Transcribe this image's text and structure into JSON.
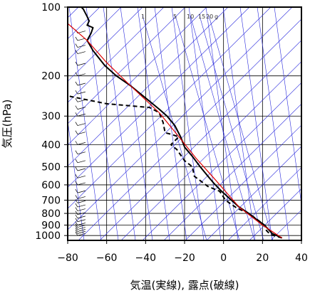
{
  "chart_data": {
    "type": "line",
    "title": "",
    "xlabel": "気温(実線), 露点(破線)",
    "ylabel": "気圧(hPa)",
    "xlim": [
      -80,
      40
    ],
    "ylim": [
      1050,
      100
    ],
    "y_scale": "log",
    "x_ticks": [
      -80,
      -60,
      -40,
      -20,
      0,
      20,
      40
    ],
    "y_ticks": [
      100,
      200,
      300,
      400,
      500,
      600,
      700,
      800,
      900,
      1000
    ],
    "mixing_ratio_labels": [
      "1",
      "5",
      "10",
      "15",
      "20",
      "g"
    ],
    "series": [
      {
        "style": "solid-black",
        "points": [
          [
            30,
            1025
          ],
          [
            25,
            980
          ],
          [
            21,
            900
          ],
          [
            17,
            850
          ],
          [
            12,
            790
          ],
          [
            8,
            750
          ],
          [
            4,
            700
          ],
          [
            -1,
            640
          ],
          [
            -5,
            590
          ],
          [
            -8,
            550
          ],
          [
            -12,
            500
          ],
          [
            -16,
            450
          ],
          [
            -20,
            410
          ],
          [
            -22,
            370
          ],
          [
            -25,
            330
          ],
          [
            -29,
            300
          ],
          [
            -33,
            280
          ],
          [
            -40,
            250
          ],
          [
            -48,
            220
          ],
          [
            -55,
            200
          ],
          [
            -61,
            180
          ],
          [
            -67,
            155
          ],
          [
            -70,
            140
          ],
          [
            -68,
            130
          ],
          [
            -67,
            123
          ],
          [
            -70,
            120
          ],
          [
            -69,
            115
          ],
          [
            -70,
            110
          ],
          [
            -72,
            102
          ],
          [
            -73,
            100
          ]
        ]
      },
      {
        "style": "dashed-black",
        "points": [
          [
            30,
            1025
          ],
          [
            24,
            990
          ],
          [
            22,
            950
          ],
          [
            21,
            900
          ],
          [
            18,
            860
          ],
          [
            13,
            800
          ],
          [
            7,
            760
          ],
          [
            2,
            710
          ],
          [
            1,
            700
          ],
          [
            -2,
            640
          ],
          [
            -8,
            610
          ],
          [
            -15,
            550
          ],
          [
            -16,
            500
          ],
          [
            -20,
            470
          ],
          [
            -24,
            420
          ],
          [
            -27,
            400
          ],
          [
            -23,
            370
          ],
          [
            -27,
            360
          ],
          [
            -30,
            355
          ],
          [
            -31,
            320
          ],
          [
            -33,
            290
          ],
          [
            -38,
            275
          ],
          [
            -60,
            265
          ],
          [
            -85,
            240
          ]
        ]
      },
      {
        "style": "solid-red",
        "points": [
          [
            30,
            1025
          ],
          [
            20,
            900
          ],
          [
            8,
            750
          ],
          [
            -5,
            560
          ],
          [
            -14,
            460
          ],
          [
            -24,
            360
          ],
          [
            -33,
            290
          ],
          [
            -48,
            220
          ],
          [
            -60,
            175
          ],
          [
            -70,
            140
          ],
          [
            -80,
            118
          ]
        ]
      }
    ],
    "wind_barbs_x": -72,
    "wind_barb_pressures": [
      1000,
      980,
      960,
      940,
      920,
      900,
      870,
      840,
      810,
      780,
      750,
      720,
      690,
      650,
      600,
      560,
      520,
      480,
      440,
      400,
      360,
      330,
      300,
      280,
      260,
      240,
      220,
      200,
      180,
      160,
      150,
      140,
      130
    ]
  }
}
